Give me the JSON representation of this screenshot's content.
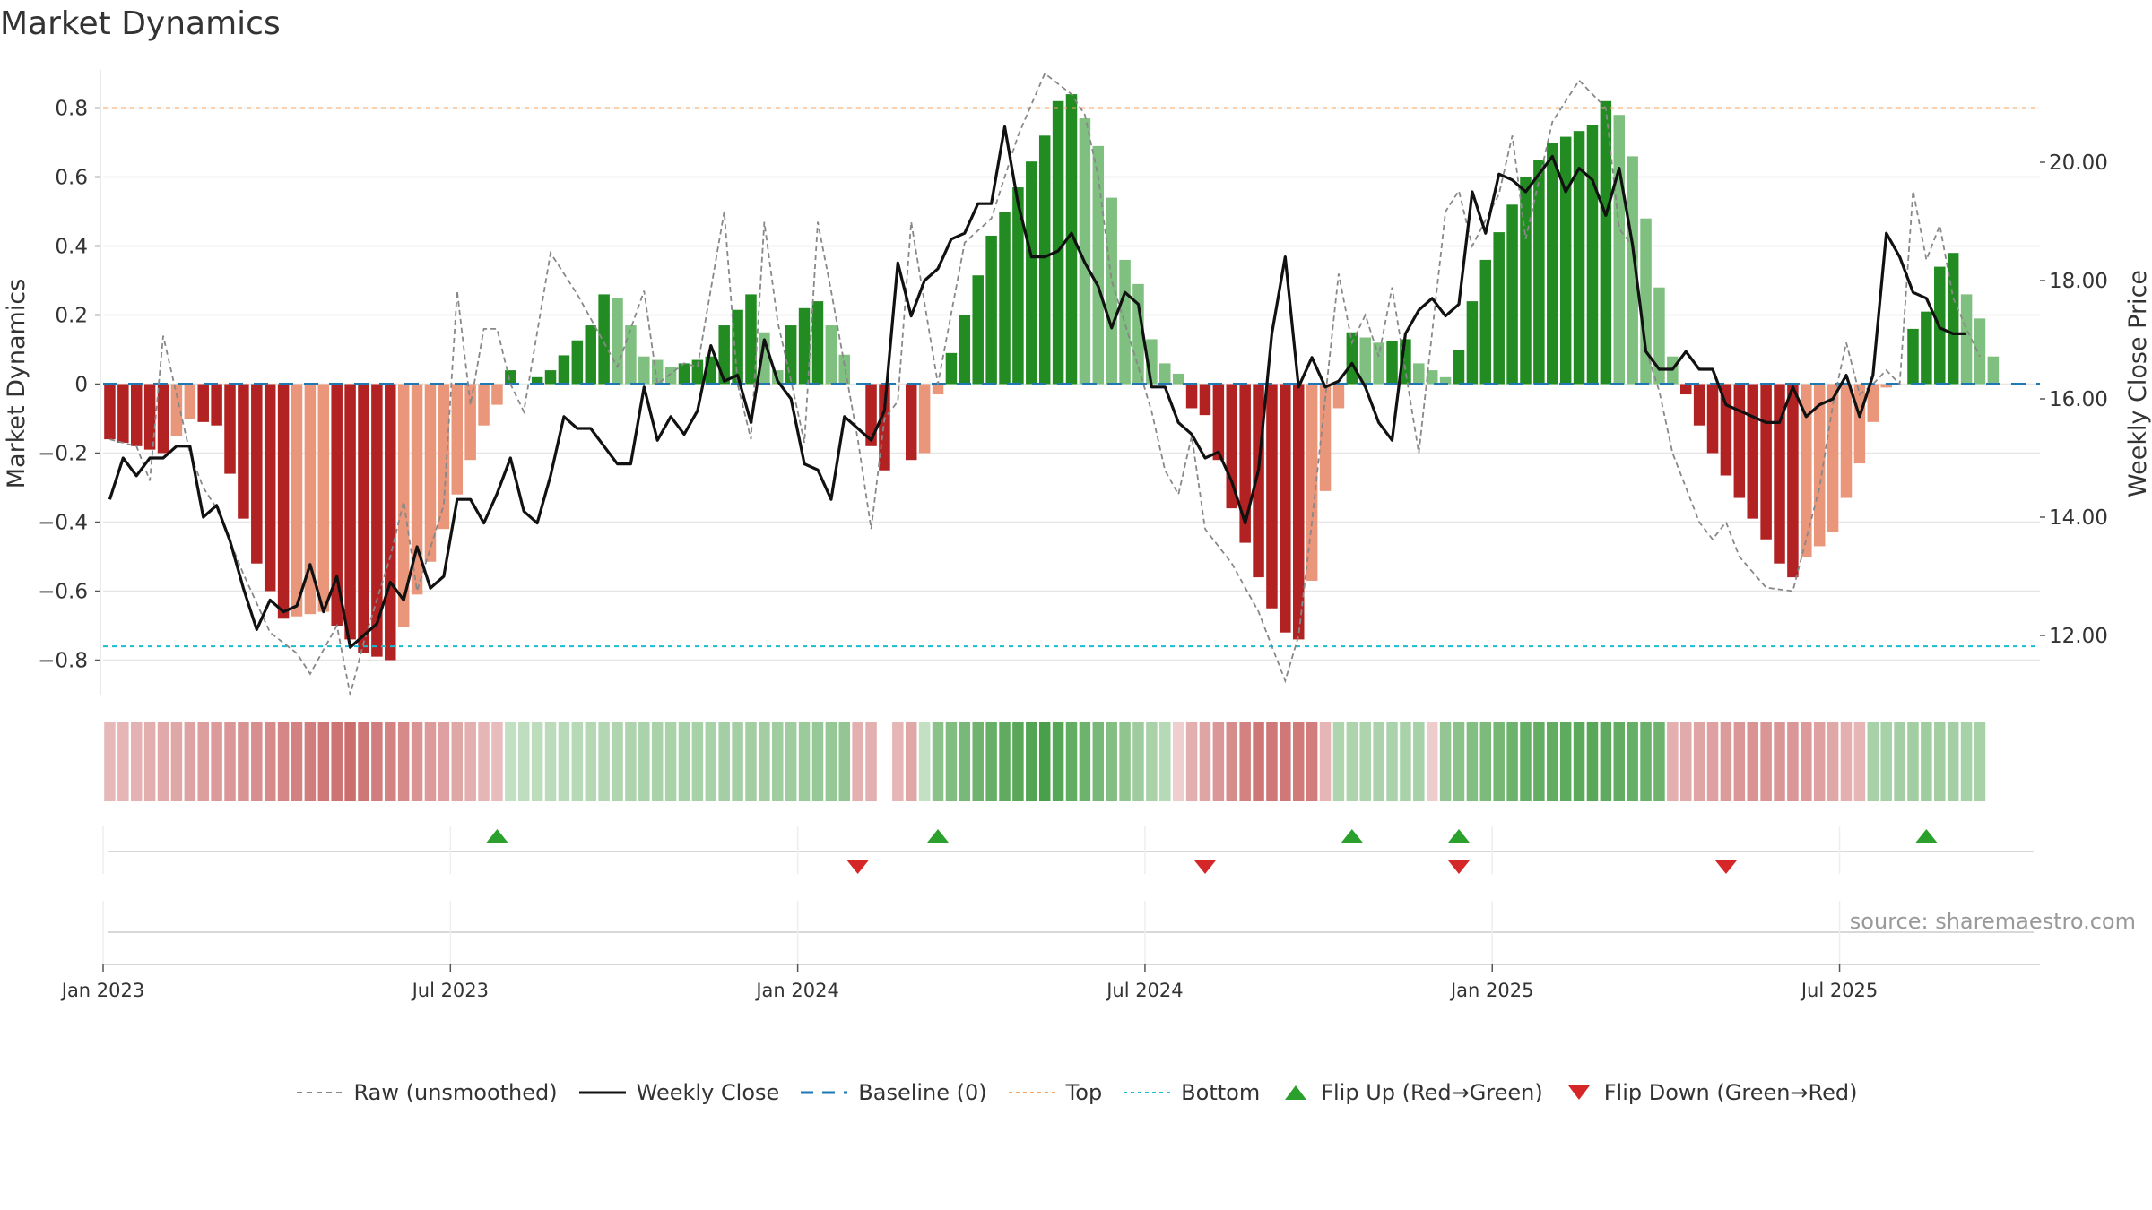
{
  "title": "Market Dynamics",
  "source": "source: sharemaestro.com",
  "colors": {
    "strong_red": "#b22222",
    "light_red": "#e9967a",
    "strong_green": "#228b22",
    "light_green": "#7fbf7f",
    "raw": "#888888",
    "close": "#111111",
    "baseline": "#1f77b4",
    "top": "#f4a460",
    "bottom": "#17becf",
    "flip_up": "#2ca02c",
    "flip_down": "#d62728"
  },
  "chart_data": {
    "type": "bar",
    "y_left_label": "Market Dynamics",
    "y_right_label": "Weekly Close Price",
    "y_left_range": [
      -0.9,
      0.9
    ],
    "y_right_range": [
      11.0,
      21.5
    ],
    "y_left_ticks": [
      "0.8",
      "0.6",
      "0.4",
      "0.2",
      "0",
      "−0.2",
      "−0.4",
      "−0.6",
      "−0.8"
    ],
    "y_left_tick_values": [
      0.8,
      0.6,
      0.4,
      0.2,
      0,
      -0.2,
      -0.4,
      -0.6,
      -0.8
    ],
    "y_right_ticks": [
      "20.00",
      "18.00",
      "16.00",
      "14.00",
      "12.00"
    ],
    "y_right_tick_values": [
      20,
      18,
      16,
      14,
      12
    ],
    "x_tick_labels": [
      "Jan 2023",
      "Jul 2023",
      "Jan 2024",
      "Jul 2024",
      "Jan 2025",
      "Jul 2025"
    ],
    "x_tick_weeks": [
      1,
      27,
      53,
      79,
      105,
      131
    ],
    "top_line": 0.8,
    "bottom_line": -0.76,
    "baseline": 0,
    "grid": true,
    "legend_placement": "bottom",
    "week_count": 145,
    "dynamics_anchors": [
      [
        0,
        -0.16
      ],
      [
        4,
        -0.2
      ],
      [
        6,
        -0.1
      ],
      [
        8,
        -0.12
      ],
      [
        9,
        -0.26
      ],
      [
        11,
        -0.52
      ],
      [
        13,
        -0.68
      ],
      [
        16,
        -0.66
      ],
      [
        19,
        -0.78
      ],
      [
        21,
        -0.8
      ],
      [
        25,
        -0.42
      ],
      [
        28,
        -0.12
      ],
      [
        29,
        -0.06
      ],
      [
        30,
        0.04
      ],
      [
        31,
        0.0
      ],
      [
        33,
        0.04
      ],
      [
        36,
        0.17
      ],
      [
        37,
        0.26
      ],
      [
        38,
        0.25
      ],
      [
        39,
        0.17
      ],
      [
        40,
        0.08
      ],
      [
        41,
        0.07
      ],
      [
        42,
        0.05
      ],
      [
        43,
        0.06
      ],
      [
        45,
        0.08
      ],
      [
        46,
        0.17
      ],
      [
        48,
        0.26
      ],
      [
        50,
        0.04
      ],
      [
        51,
        0.17
      ],
      [
        52,
        0.22
      ],
      [
        53,
        0.24
      ],
      [
        54,
        0.17
      ],
      [
        56,
        0.0
      ],
      [
        57,
        -0.18
      ],
      [
        58,
        -0.25
      ],
      [
        59,
        0.0
      ],
      [
        60,
        -0.22
      ],
      [
        61,
        -0.2
      ],
      [
        62,
        -0.03
      ],
      [
        63,
        0.09
      ],
      [
        64,
        0.2
      ],
      [
        66,
        0.43
      ],
      [
        68,
        0.57
      ],
      [
        70,
        0.72
      ],
      [
        71,
        0.82
      ],
      [
        72,
        0.84
      ],
      [
        73,
        0.77
      ],
      [
        74,
        0.69
      ],
      [
        75,
        0.54
      ],
      [
        76,
        0.36
      ],
      [
        77,
        0.29
      ],
      [
        78,
        0.13
      ],
      [
        79,
        0.06
      ],
      [
        80,
        0.03
      ],
      [
        81,
        -0.07
      ],
      [
        82,
        -0.09
      ],
      [
        83,
        -0.22
      ],
      [
        84,
        -0.36
      ],
      [
        85,
        -0.46
      ],
      [
        86,
        -0.56
      ],
      [
        87,
        -0.65
      ],
      [
        88,
        -0.72
      ],
      [
        89,
        -0.74
      ],
      [
        90,
        -0.57
      ],
      [
        91,
        -0.31
      ],
      [
        92,
        -0.07
      ],
      [
        93,
        0.15
      ],
      [
        95,
        0.12
      ],
      [
        97,
        0.13
      ],
      [
        98,
        0.06
      ],
      [
        100,
        0.02
      ],
      [
        101,
        0.1
      ],
      [
        102,
        0.24
      ],
      [
        103,
        0.36
      ],
      [
        104,
        0.44
      ],
      [
        106,
        0.6
      ],
      [
        108,
        0.7
      ],
      [
        111,
        0.75
      ],
      [
        112,
        0.82
      ],
      [
        113,
        0.78
      ],
      [
        114,
        0.66
      ],
      [
        115,
        0.48
      ],
      [
        116,
        0.28
      ],
      [
        117,
        0.08
      ],
      [
        118,
        -0.03
      ],
      [
        119,
        -0.12
      ],
      [
        120,
        -0.2
      ],
      [
        122,
        -0.33
      ],
      [
        124,
        -0.45
      ],
      [
        125,
        -0.52
      ],
      [
        126,
        -0.56
      ],
      [
        127,
        -0.5
      ],
      [
        128,
        -0.47
      ],
      [
        129,
        -0.43
      ],
      [
        130,
        -0.33
      ],
      [
        131,
        -0.23
      ],
      [
        132,
        -0.11
      ],
      [
        133,
        -0.01
      ],
      [
        134,
        0.0
      ],
      [
        135,
        0.16
      ],
      [
        136,
        0.21
      ],
      [
        137,
        0.34
      ],
      [
        138,
        0.38
      ],
      [
        139,
        0.26
      ],
      [
        140,
        0.19
      ],
      [
        141,
        0.08
      ]
    ],
    "raw_anchors": [
      [
        0,
        -0.16
      ],
      [
        2,
        -0.18
      ],
      [
        3,
        -0.28
      ],
      [
        4,
        0.14
      ],
      [
        6,
        -0.2
      ],
      [
        7,
        -0.3
      ],
      [
        8,
        -0.36
      ],
      [
        10,
        -0.55
      ],
      [
        12,
        -0.72
      ],
      [
        14,
        -0.78
      ],
      [
        15,
        -0.84
      ],
      [
        17,
        -0.7
      ],
      [
        18,
        -0.9
      ],
      [
        19,
        -0.75
      ],
      [
        21,
        -0.5
      ],
      [
        22,
        -0.34
      ],
      [
        23,
        -0.6
      ],
      [
        25,
        -0.35
      ],
      [
        26,
        0.27
      ],
      [
        27,
        -0.06
      ],
      [
        28,
        0.16
      ],
      [
        29,
        0.16
      ],
      [
        30,
        0.0
      ],
      [
        31,
        -0.08
      ],
      [
        33,
        0.38
      ],
      [
        35,
        0.26
      ],
      [
        37,
        0.12
      ],
      [
        38,
        0.05
      ],
      [
        40,
        0.27
      ],
      [
        41,
        0.0
      ],
      [
        43,
        0.06
      ],
      [
        44,
        0.05
      ],
      [
        46,
        0.5
      ],
      [
        47,
        0.0
      ],
      [
        48,
        -0.16
      ],
      [
        49,
        0.47
      ],
      [
        50,
        0.18
      ],
      [
        51,
        0.01
      ],
      [
        52,
        -0.17
      ],
      [
        53,
        0.47
      ],
      [
        54,
        0.27
      ],
      [
        56,
        -0.16
      ],
      [
        57,
        -0.42
      ],
      [
        58,
        -0.1
      ],
      [
        59,
        -0.05
      ],
      [
        60,
        0.47
      ],
      [
        62,
        0.0
      ],
      [
        64,
        0.41
      ],
      [
        66,
        0.48
      ],
      [
        68,
        0.72
      ],
      [
        70,
        0.9
      ],
      [
        72,
        0.84
      ],
      [
        73,
        0.78
      ],
      [
        74,
        0.6
      ],
      [
        75,
        0.3
      ],
      [
        77,
        0.05
      ],
      [
        78,
        -0.08
      ],
      [
        79,
        -0.25
      ],
      [
        80,
        -0.32
      ],
      [
        81,
        -0.15
      ],
      [
        82,
        -0.42
      ],
      [
        84,
        -0.52
      ],
      [
        86,
        -0.66
      ],
      [
        88,
        -0.86
      ],
      [
        89,
        -0.73
      ],
      [
        90,
        -0.4
      ],
      [
        92,
        0.32
      ],
      [
        93,
        0.12
      ],
      [
        94,
        0.2
      ],
      [
        95,
        0.08
      ],
      [
        96,
        0.28
      ],
      [
        97,
        0.04
      ],
      [
        98,
        -0.2
      ],
      [
        100,
        0.5
      ],
      [
        101,
        0.56
      ],
      [
        102,
        0.4
      ],
      [
        104,
        0.55
      ],
      [
        105,
        0.72
      ],
      [
        106,
        0.42
      ],
      [
        108,
        0.76
      ],
      [
        110,
        0.88
      ],
      [
        112,
        0.8
      ],
      [
        113,
        0.45
      ],
      [
        114,
        0.4
      ],
      [
        115,
        0.1
      ],
      [
        116,
        -0.02
      ],
      [
        117,
        -0.2
      ],
      [
        118,
        -0.3
      ],
      [
        119,
        -0.4
      ],
      [
        120,
        -0.45
      ],
      [
        121,
        -0.4
      ],
      [
        122,
        -0.5
      ],
      [
        124,
        -0.59
      ],
      [
        126,
        -0.6
      ],
      [
        127,
        -0.45
      ],
      [
        128,
        -0.3
      ],
      [
        129,
        -0.06
      ],
      [
        130,
        0.12
      ],
      [
        131,
        -0.03
      ],
      [
        132,
        0.0
      ],
      [
        133,
        0.04
      ],
      [
        134,
        0.0
      ],
      [
        135,
        0.56
      ],
      [
        136,
        0.36
      ],
      [
        137,
        0.46
      ],
      [
        138,
        0.25
      ],
      [
        139,
        0.16
      ],
      [
        140,
        0.08
      ]
    ],
    "close_anchors": [
      [
        0,
        14.3
      ],
      [
        1,
        15.0
      ],
      [
        2,
        14.7
      ],
      [
        3,
        15.0
      ],
      [
        4,
        15.0
      ],
      [
        5,
        15.2
      ],
      [
        6,
        15.2
      ],
      [
        7,
        14.0
      ],
      [
        8,
        14.2
      ],
      [
        9,
        13.6
      ],
      [
        10,
        12.8
      ],
      [
        11,
        12.1
      ],
      [
        12,
        12.6
      ],
      [
        13,
        12.4
      ],
      [
        14,
        12.5
      ],
      [
        15,
        13.2
      ],
      [
        16,
        12.4
      ],
      [
        17,
        13.0
      ],
      [
        18,
        11.8
      ],
      [
        19,
        12.0
      ],
      [
        20,
        12.2
      ],
      [
        21,
        12.9
      ],
      [
        22,
        12.6
      ],
      [
        23,
        13.5
      ],
      [
        24,
        12.8
      ],
      [
        25,
        13.0
      ],
      [
        26,
        14.3
      ],
      [
        27,
        14.3
      ],
      [
        28,
        13.9
      ],
      [
        29,
        14.4
      ],
      [
        30,
        15.0
      ],
      [
        31,
        14.1
      ],
      [
        32,
        13.9
      ],
      [
        33,
        14.7
      ],
      [
        34,
        15.7
      ],
      [
        35,
        15.5
      ],
      [
        36,
        15.5
      ],
      [
        37,
        15.2
      ],
      [
        38,
        14.9
      ],
      [
        39,
        14.9
      ],
      [
        40,
        16.2
      ],
      [
        41,
        15.3
      ],
      [
        42,
        15.7
      ],
      [
        43,
        15.4
      ],
      [
        44,
        15.8
      ],
      [
        45,
        16.9
      ],
      [
        46,
        16.3
      ],
      [
        47,
        16.4
      ],
      [
        48,
        15.6
      ],
      [
        49,
        17.0
      ],
      [
        50,
        16.3
      ],
      [
        51,
        16.0
      ],
      [
        52,
        14.9
      ],
      [
        53,
        14.8
      ],
      [
        54,
        14.3
      ],
      [
        55,
        15.7
      ],
      [
        56,
        15.5
      ],
      [
        57,
        15.3
      ],
      [
        58,
        15.8
      ],
      [
        59,
        18.3
      ],
      [
        60,
        17.4
      ],
      [
        61,
        18.0
      ],
      [
        62,
        18.2
      ],
      [
        63,
        18.7
      ],
      [
        64,
        18.8
      ],
      [
        65,
        19.3
      ],
      [
        66,
        19.3
      ],
      [
        67,
        20.6
      ],
      [
        68,
        19.3
      ],
      [
        69,
        18.4
      ],
      [
        70,
        18.4
      ],
      [
        71,
        18.5
      ],
      [
        72,
        18.8
      ],
      [
        73,
        18.3
      ],
      [
        74,
        17.9
      ],
      [
        75,
        17.2
      ],
      [
        76,
        17.8
      ],
      [
        77,
        17.6
      ],
      [
        78,
        16.2
      ],
      [
        79,
        16.2
      ],
      [
        80,
        15.6
      ],
      [
        81,
        15.4
      ],
      [
        82,
        15.0
      ],
      [
        83,
        15.1
      ],
      [
        84,
        14.6
      ],
      [
        85,
        13.9
      ],
      [
        86,
        14.8
      ],
      [
        87,
        17.1
      ],
      [
        88,
        18.4
      ],
      [
        89,
        16.2
      ],
      [
        90,
        16.7
      ],
      [
        91,
        16.2
      ],
      [
        92,
        16.3
      ],
      [
        93,
        16.6
      ],
      [
        94,
        16.2
      ],
      [
        95,
        15.6
      ],
      [
        96,
        15.3
      ],
      [
        97,
        17.1
      ],
      [
        98,
        17.5
      ],
      [
        99,
        17.7
      ],
      [
        100,
        17.4
      ],
      [
        101,
        17.6
      ],
      [
        102,
        19.5
      ],
      [
        103,
        18.8
      ],
      [
        104,
        19.8
      ],
      [
        105,
        19.7
      ],
      [
        106,
        19.5
      ],
      [
        107,
        19.8
      ],
      [
        108,
        20.1
      ],
      [
        109,
        19.5
      ],
      [
        110,
        19.9
      ],
      [
        111,
        19.7
      ],
      [
        112,
        19.1
      ],
      [
        113,
        19.9
      ],
      [
        114,
        18.6
      ],
      [
        115,
        16.8
      ],
      [
        116,
        16.5
      ],
      [
        117,
        16.5
      ],
      [
        118,
        16.8
      ],
      [
        119,
        16.5
      ],
      [
        120,
        16.5
      ],
      [
        121,
        15.9
      ],
      [
        122,
        15.8
      ],
      [
        123,
        15.7
      ],
      [
        124,
        15.6
      ],
      [
        125,
        15.6
      ],
      [
        126,
        16.2
      ],
      [
        127,
        15.7
      ],
      [
        128,
        15.9
      ],
      [
        129,
        16.0
      ],
      [
        130,
        16.4
      ],
      [
        131,
        15.7
      ],
      [
        132,
        16.4
      ],
      [
        133,
        18.8
      ],
      [
        134,
        18.4
      ],
      [
        135,
        17.8
      ],
      [
        136,
        17.7
      ],
      [
        137,
        17.2
      ],
      [
        138,
        17.1
      ],
      [
        139,
        17.1
      ]
    ],
    "regime_anchors": [
      [
        0,
        -0.18
      ],
      [
        10,
        -0.45
      ],
      [
        18,
        -0.7
      ],
      [
        26,
        -0.3
      ],
      [
        29,
        -0.15
      ],
      [
        30,
        0.12
      ],
      [
        40,
        0.28
      ],
      [
        50,
        0.35
      ],
      [
        55,
        0.45
      ],
      [
        56,
        -0.25
      ],
      [
        57,
        -0.25
      ],
      [
        58,
        null
      ],
      [
        59,
        -0.2
      ],
      [
        60,
        -0.3
      ],
      [
        62,
        0.5
      ],
      [
        66,
        0.75
      ],
      [
        70,
        0.95
      ],
      [
        75,
        0.55
      ],
      [
        79,
        0.2
      ],
      [
        81,
        -0.25
      ],
      [
        86,
        -0.65
      ],
      [
        90,
        -0.6
      ],
      [
        91,
        -0.2
      ],
      [
        92,
        0.25
      ],
      [
        98,
        0.3
      ],
      [
        99,
        -0.05
      ],
      [
        100,
        0.45
      ],
      [
        106,
        0.75
      ],
      [
        111,
        0.85
      ],
      [
        116,
        0.7
      ],
      [
        117,
        -0.25
      ],
      [
        123,
        -0.45
      ],
      [
        127,
        -0.4
      ],
      [
        131,
        -0.2
      ],
      [
        132,
        0.3
      ],
      [
        136,
        0.35
      ],
      [
        140,
        0.3
      ]
    ],
    "flip_up_weeks": [
      29,
      62,
      93,
      101,
      136
    ],
    "flip_down_weeks": [
      56,
      82,
      101,
      121
    ]
  },
  "legend": [
    {
      "key": "raw",
      "label": "Raw (unsmoothed)",
      "icon": "dashed-gray-line-icon"
    },
    {
      "key": "close",
      "label": "Weekly Close",
      "icon": "solid-black-line-icon"
    },
    {
      "key": "baseline",
      "label": "Baseline (0)",
      "icon": "dashed-blue-line-icon"
    },
    {
      "key": "top",
      "label": "Top",
      "icon": "dotted-orange-line-icon"
    },
    {
      "key": "bottom",
      "label": "Bottom",
      "icon": "dotted-cyan-line-icon"
    },
    {
      "key": "flip_up",
      "label": "Flip Up (Red→Green)",
      "icon": "green-triangle-up-icon"
    },
    {
      "key": "flip_down",
      "label": "Flip Down (Green→Red)",
      "icon": "red-triangle-down-icon"
    }
  ]
}
